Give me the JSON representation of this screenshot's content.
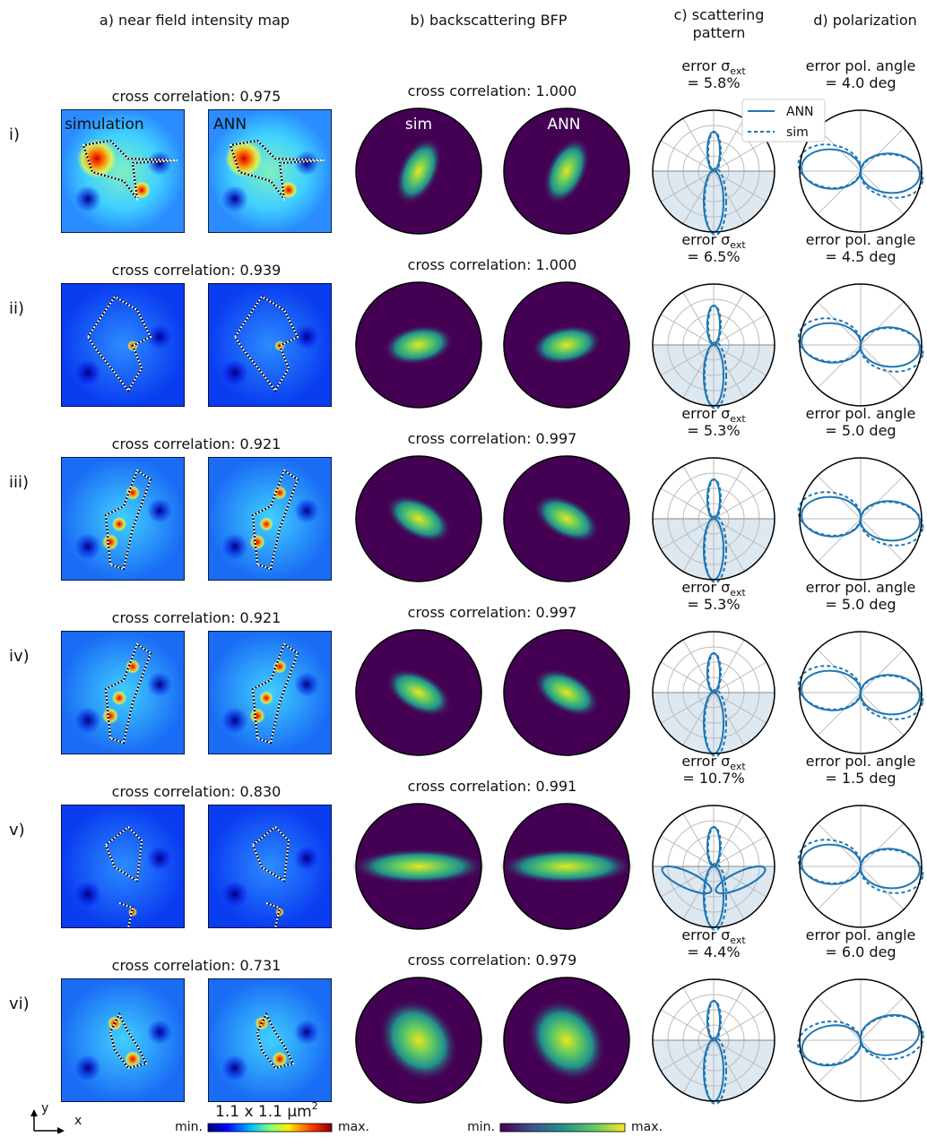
{
  "headers": {
    "near_field": "a) near field intensity map",
    "bfp": "b) backscattering BFP",
    "scattering": [
      "c) scattering",
      "pattern"
    ],
    "polarization": "d) polarization"
  },
  "labels": {
    "simulation": "simulation",
    "ann_nf": "ANN",
    "sim_bfp": "sim",
    "ann_bfp": "ANN",
    "scale": "1.1 x 1.1 μm",
    "scale_sup": "2"
  },
  "legend": {
    "ann": "ANN",
    "sim": "sim"
  },
  "axes": {
    "y": "y",
    "x": "x"
  },
  "colorbars": {
    "jet": {
      "min": "min.",
      "max": "max."
    },
    "viridis": {
      "min": "min.",
      "max": "max."
    }
  },
  "rows": [
    {
      "label": "i)",
      "nf_cc": "cross correlation: 0.975",
      "bfp_cc": "cross correlation: 1.000",
      "err_ext_label": "error σ",
      "err_ext_sub": "ext",
      "err_ext": "= 5.8%",
      "err_pol_label": "error pol. angle",
      "err_pol": "= 4.0 deg"
    },
    {
      "label": "ii)",
      "nf_cc": "cross correlation: 0.939",
      "bfp_cc": "cross correlation: 1.000",
      "err_ext_label": "error σ",
      "err_ext_sub": "ext",
      "err_ext": "= 6.5%",
      "err_pol_label": "error pol. angle",
      "err_pol": "= 4.5 deg"
    },
    {
      "label": "iii)",
      "nf_cc": "cross correlation: 0.921",
      "bfp_cc": "cross correlation: 0.997",
      "err_ext_label": "error σ",
      "err_ext_sub": "ext",
      "err_ext": "= 5.3%",
      "err_pol_label": "error pol. angle",
      "err_pol": "= 5.0 deg"
    },
    {
      "label": "iv)",
      "nf_cc": "cross correlation: 0.921",
      "bfp_cc": "cross correlation: 0.997",
      "err_ext_label": "error σ",
      "err_ext_sub": "ext",
      "err_ext": "= 5.3%",
      "err_pol_label": "error pol. angle",
      "err_pol": "= 5.0 deg"
    },
    {
      "label": "v)",
      "nf_cc": "cross correlation: 0.830",
      "bfp_cc": "cross correlation: 0.991",
      "err_ext_label": "error σ",
      "err_ext_sub": "ext",
      "err_ext": "= 10.7%",
      "err_pol_label": "error pol. angle",
      "err_pol": "= 1.5 deg"
    },
    {
      "label": "vi)",
      "nf_cc": "cross correlation: 0.731",
      "bfp_cc": "cross correlation: 0.979",
      "err_ext_label": "error σ",
      "err_ext_sub": "ext",
      "err_ext": "= 4.4%",
      "err_pol_label": "error pol. angle",
      "err_pol": "= 6.0 deg"
    }
  ]
}
